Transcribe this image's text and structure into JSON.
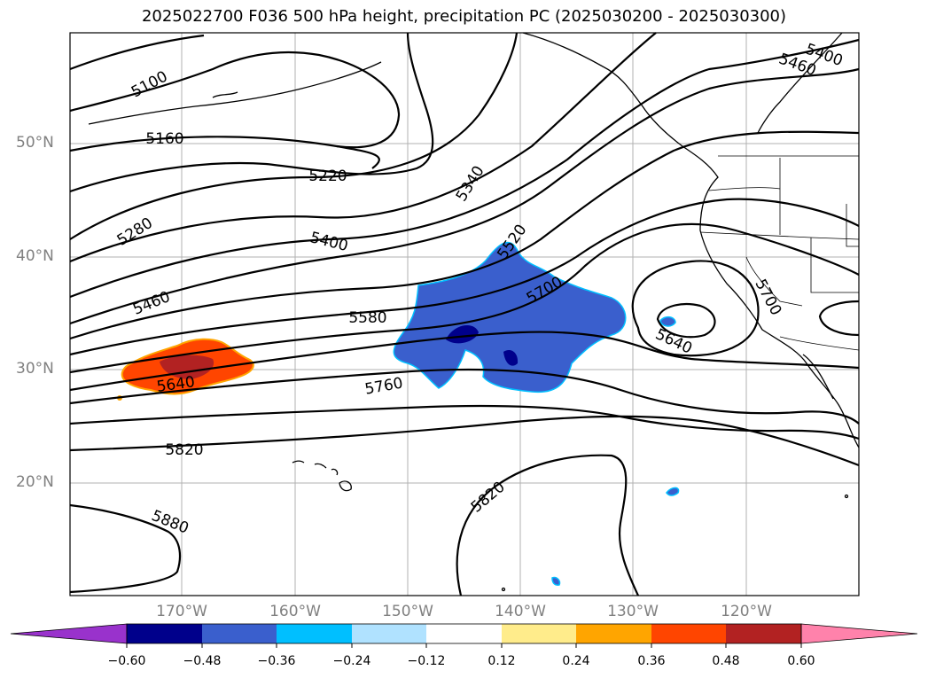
{
  "title": "2025022700 F036 500 hPa height, precipitation PC (2025030200 - 2025030300)",
  "axes": {
    "lat_labels": [
      "50°N",
      "40°N",
      "30°N",
      "20°N"
    ],
    "lon_labels": [
      "170°W",
      "160°W",
      "150°W",
      "140°W",
      "130°W",
      "120°W"
    ]
  },
  "contour_labels": [
    "5100",
    "5160",
    "5220",
    "5280",
    "5340",
    "5400",
    "5400",
    "5460",
    "5460",
    "5520",
    "5580",
    "5640",
    "5640",
    "5700",
    "5700",
    "5760",
    "5820",
    "5820",
    "5880"
  ],
  "colorbar": {
    "ticks": [
      "−0.60",
      "−0.48",
      "−0.36",
      "−0.24",
      "−0.12",
      "0.12",
      "0.24",
      "0.36",
      "0.48",
      "0.60"
    ],
    "colors": [
      "#9932cc",
      "#00008b",
      "#3a5fcd",
      "#00bfff",
      "#b0e2ff",
      "#ffffff",
      "#ffec8b",
      "#ffa500",
      "#ff4500",
      "#b22222",
      "#ff82ab"
    ]
  },
  "colors": {
    "blue_region": "#3a5fcd",
    "dark_blue": "#00008b",
    "orange": "#ff4500",
    "dark_red": "#b22222",
    "contour": "#000000",
    "grid": "#b0b0b0"
  }
}
